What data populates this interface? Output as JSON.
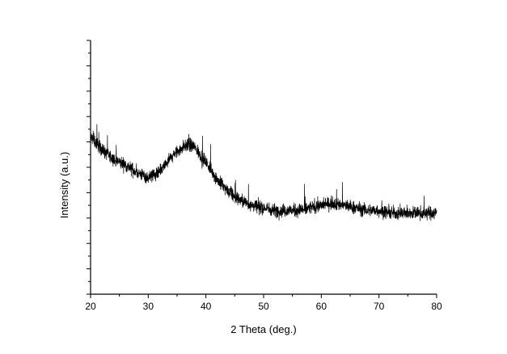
{
  "chart_data": {
    "type": "line",
    "title": "",
    "xlabel": "2 Theta (deg.)",
    "ylabel": "Intensity (a.u.)",
    "xlim": [
      20,
      80
    ],
    "x_ticks": [
      20,
      30,
      40,
      50,
      60,
      70,
      80
    ],
    "y_tick_labels_shown": false,
    "y_minor_ticks": 20,
    "grid": false,
    "legend": "none",
    "color": "#000000",
    "series": [
      {
        "x": [
          20,
          22,
          24,
          26,
          28,
          30,
          32,
          34,
          36,
          37,
          38,
          40,
          42,
          44,
          46,
          48,
          50,
          52,
          54,
          56,
          58,
          60,
          62,
          64,
          66,
          68,
          70,
          72,
          74,
          76,
          78,
          80
        ],
        "y": [
          0.62,
          0.57,
          0.53,
          0.51,
          0.48,
          0.46,
          0.48,
          0.54,
          0.58,
          0.59,
          0.58,
          0.52,
          0.45,
          0.4,
          0.37,
          0.35,
          0.34,
          0.33,
          0.33,
          0.33,
          0.34,
          0.35,
          0.36,
          0.35,
          0.34,
          0.33,
          0.33,
          0.32,
          0.32,
          0.32,
          0.32,
          0.32
        ]
      }
    ]
  },
  "axes": {
    "x_tick_labels": [
      "20",
      "30",
      "40",
      "50",
      "60",
      "70",
      "80"
    ]
  }
}
